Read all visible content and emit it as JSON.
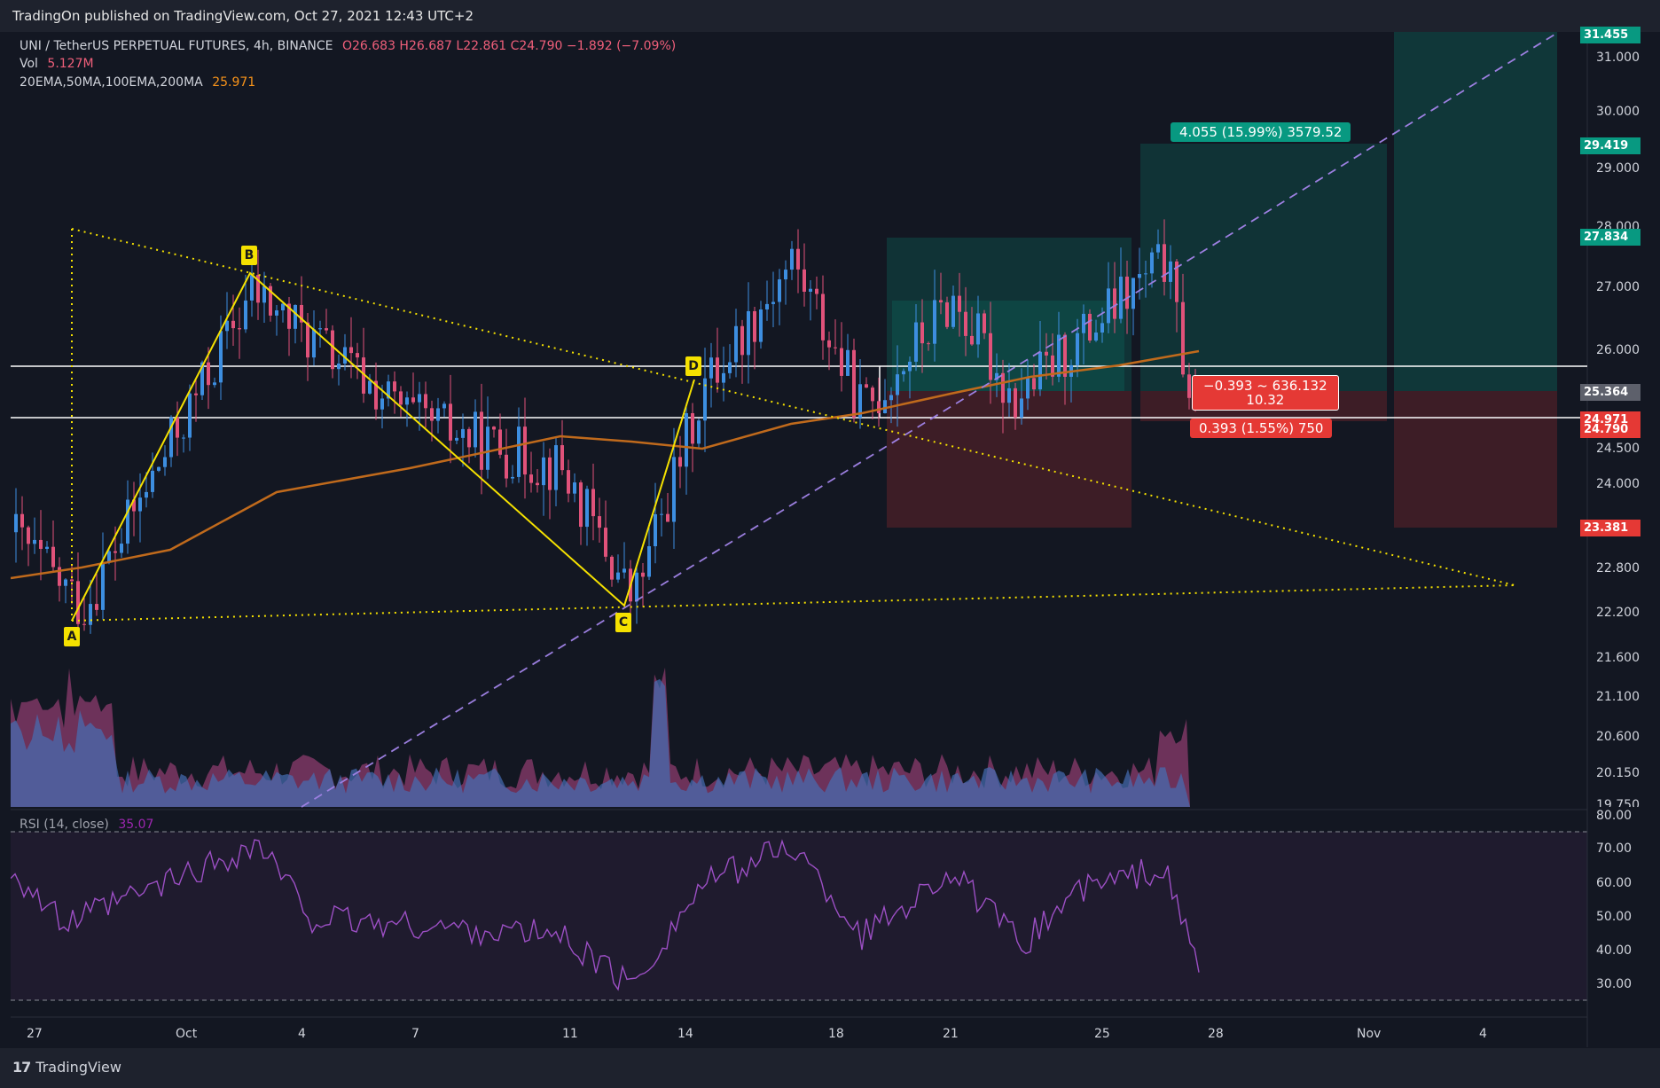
{
  "publisher": "TradingOn published on TradingView.com, Oct 27, 2021 12:43 UTC+2",
  "legend": {
    "symbol": "UNI / TetherUS PERPETUAL FUTURES, 4h, BINANCE",
    "ohlc": "O26.683  H26.687  L22.861  C24.790  −1.892 (−7.09%)",
    "vol_label": "Vol",
    "vol_value": "5.127M",
    "ma_label": "20EMA,50MA,100EMA,200MA",
    "ma_value": "25.971"
  },
  "rsi": {
    "label": "RSI (14, close)",
    "value": "35.07"
  },
  "price_axis": [
    "31.000",
    "30.000",
    "29.000",
    "28.000",
    "27.000",
    "26.000",
    "24.500",
    "24.000",
    "22.800",
    "22.200",
    "21.600",
    "21.100",
    "20.600",
    "20.150",
    "19.750"
  ],
  "price_tags": {
    "top": "31.455",
    "target": "29.419",
    "entry_top": "27.834",
    "gray": "25.364",
    "red1": "24.971",
    "red2": "24.790",
    "stop": "23.381"
  },
  "rsi_axis": [
    "80.00",
    "70.00",
    "60.00",
    "50.00",
    "40.00",
    "30.00"
  ],
  "time_axis": [
    "27",
    "Oct",
    "4",
    "7",
    "11",
    "14",
    "18",
    "21",
    "25",
    "28",
    "Nov",
    "4"
  ],
  "pattern_points": [
    "A",
    "B",
    "C",
    "D"
  ],
  "measure": {
    "profit": "4.055 (15.99%) 3579.52",
    "range_line1": "−0.393 ~ 636.132",
    "range_line2": "10.32",
    "loss": "0.393 (1.55%) 750"
  },
  "footer": {
    "brand_mark": "17",
    "brand": "TradingView"
  },
  "colors": {
    "bg": "#131722",
    "bull": "#3d8ee0",
    "bear": "#e0527a",
    "ema": "#c06a1c",
    "rsi": "#9c4fc4",
    "yellow": "#f5e100",
    "profit": "#0e8c7f",
    "loss": "#e53935"
  },
  "chart_data": {
    "type": "candlestick",
    "price_range": [
      19.75,
      31.5
    ],
    "rsi_range": [
      25,
      80
    ],
    "ema_last": 25.971,
    "rsi_last": 35.07
  }
}
